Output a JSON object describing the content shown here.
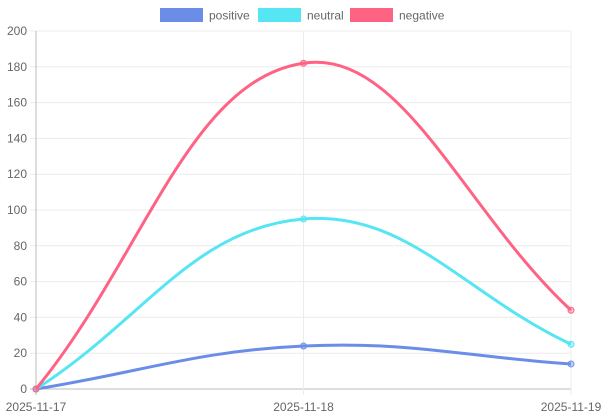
{
  "chart_data": {
    "type": "line",
    "title": "",
    "xlabel": "",
    "ylabel": "",
    "categories": [
      "2025-11-17",
      "2025-11-18",
      "2025-11-19"
    ],
    "ylim": [
      0,
      200
    ],
    "yticks": [
      0,
      20,
      40,
      60,
      80,
      100,
      120,
      140,
      160,
      180,
      200
    ],
    "grid": true,
    "legend_position": "top",
    "series": [
      {
        "name": "positive",
        "color": "#6a8ee8",
        "values": [
          0,
          24,
          14
        ]
      },
      {
        "name": "neutral",
        "color": "#56e5f2",
        "values": [
          0,
          95,
          25
        ]
      },
      {
        "name": "negative",
        "color": "#ff6384",
        "values": [
          0,
          182,
          44
        ]
      }
    ]
  }
}
